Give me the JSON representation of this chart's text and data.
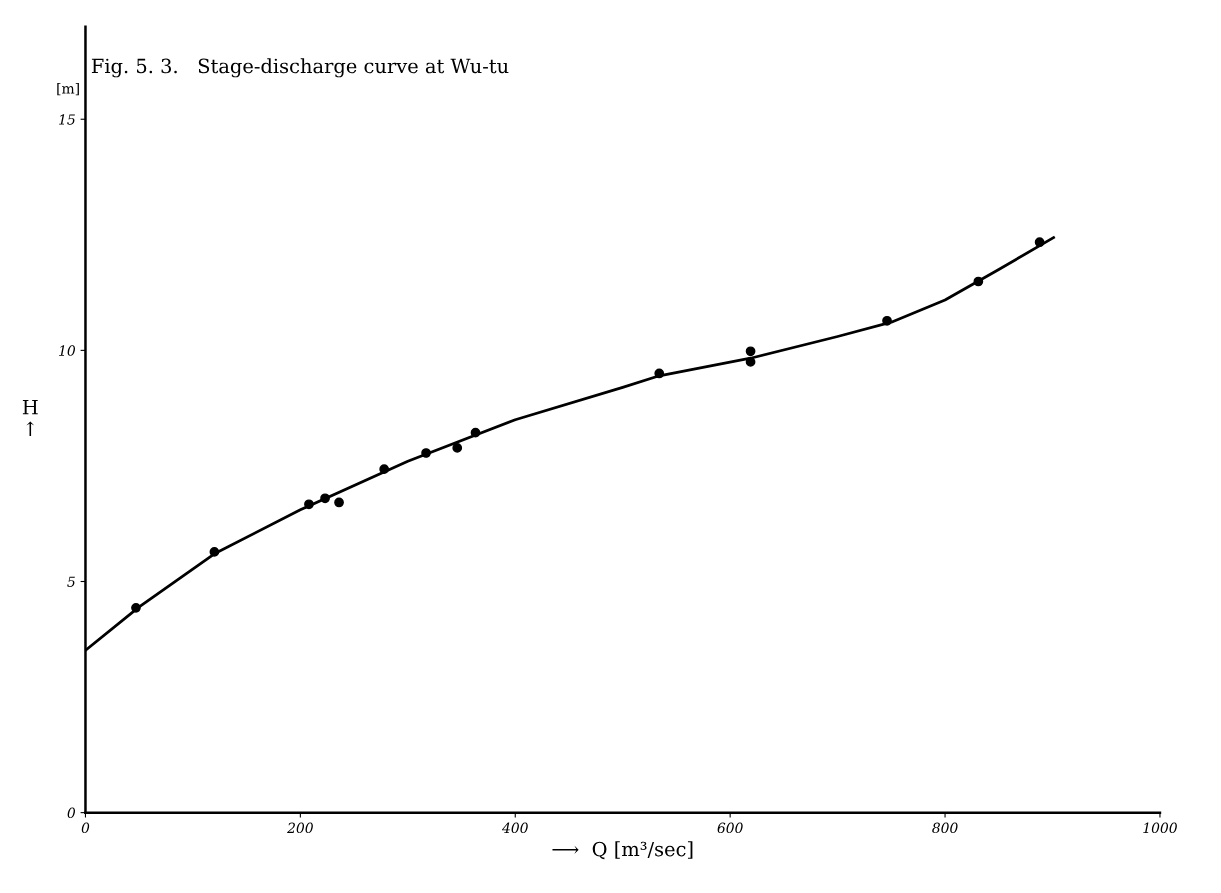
{
  "chart_data": {
    "type": "scatter",
    "title": "Fig. 5. 3.   Stage-discharge curve at Wu-tu",
    "xlabel": "⟶  Q [m³/sec]",
    "ylabel": "H\n↑",
    "annotations": [
      "[m]"
    ],
    "series": [
      {
        "color": "#000000",
        "marker": "circle",
        "x": [
          47,
          120,
          208,
          223,
          236,
          278,
          317,
          346,
          363,
          534,
          619,
          619,
          746,
          831,
          888
        ],
        "values": [
          4.43,
          5.64,
          6.67,
          6.8,
          6.71,
          7.43,
          7.78,
          7.89,
          8.22,
          9.5,
          9.98,
          9.75,
          10.64,
          11.49,
          12.34
        ]
      },
      {
        "type": "line",
        "color": "#000000",
        "line_style": "solid",
        "marker": "none",
        "x": [
          0,
          50,
          120,
          200,
          300,
          400,
          500,
          534,
          619,
          700,
          750,
          800,
          850,
          901
        ],
        "values": [
          3.51,
          4.45,
          5.6,
          6.55,
          7.6,
          8.5,
          9.2,
          9.45,
          9.83,
          10.3,
          10.61,
          11.09,
          11.75,
          12.44
        ]
      }
    ],
    "xlim": [
      0,
      1000
    ],
    "ylim": [
      0,
      17
    ],
    "xticks": [
      0,
      200,
      400,
      600,
      800,
      1000
    ],
    "yticks": [
      0,
      5,
      10,
      15
    ],
    "grid": false,
    "legend": false
  }
}
